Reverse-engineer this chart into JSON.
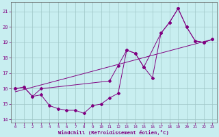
{
  "xlabel": "Windchill (Refroidissement éolien,°C)",
  "background_color": "#c8eef0",
  "grid_color": "#a0c8c8",
  "line_color": "#800080",
  "xlim": [
    -0.5,
    23.5
  ],
  "ylim": [
    13.8,
    21.6
  ],
  "yticks": [
    14,
    15,
    16,
    17,
    18,
    19,
    20,
    21
  ],
  "xticks": [
    0,
    1,
    2,
    3,
    4,
    5,
    6,
    7,
    8,
    9,
    10,
    11,
    12,
    13,
    14,
    15,
    16,
    17,
    18,
    19,
    20,
    21,
    22,
    23
  ],
  "line1_x": [
    0,
    1,
    2,
    3,
    4,
    5,
    6,
    7,
    8,
    9,
    10,
    11,
    12,
    13,
    14,
    15,
    16,
    17,
    18,
    19,
    20,
    21,
    22,
    23
  ],
  "line1_y": [
    16.0,
    16.1,
    15.5,
    15.6,
    14.9,
    14.7,
    14.6,
    14.6,
    14.4,
    14.9,
    15.0,
    15.4,
    15.7,
    18.5,
    18.3,
    17.4,
    16.7,
    19.6,
    20.3,
    21.2,
    20.0,
    19.1,
    19.0,
    19.2
  ],
  "line2_x": [
    0,
    1,
    2,
    3,
    11,
    12,
    13,
    14,
    15,
    17,
    18,
    19,
    20,
    21,
    22,
    23
  ],
  "line2_y": [
    16.0,
    16.1,
    15.5,
    16.0,
    16.5,
    17.5,
    18.5,
    18.3,
    17.4,
    19.6,
    20.3,
    21.2,
    20.0,
    19.1,
    19.0,
    19.2
  ],
  "line3_x": [
    0,
    23
  ],
  "line3_y": [
    15.8,
    19.2
  ]
}
